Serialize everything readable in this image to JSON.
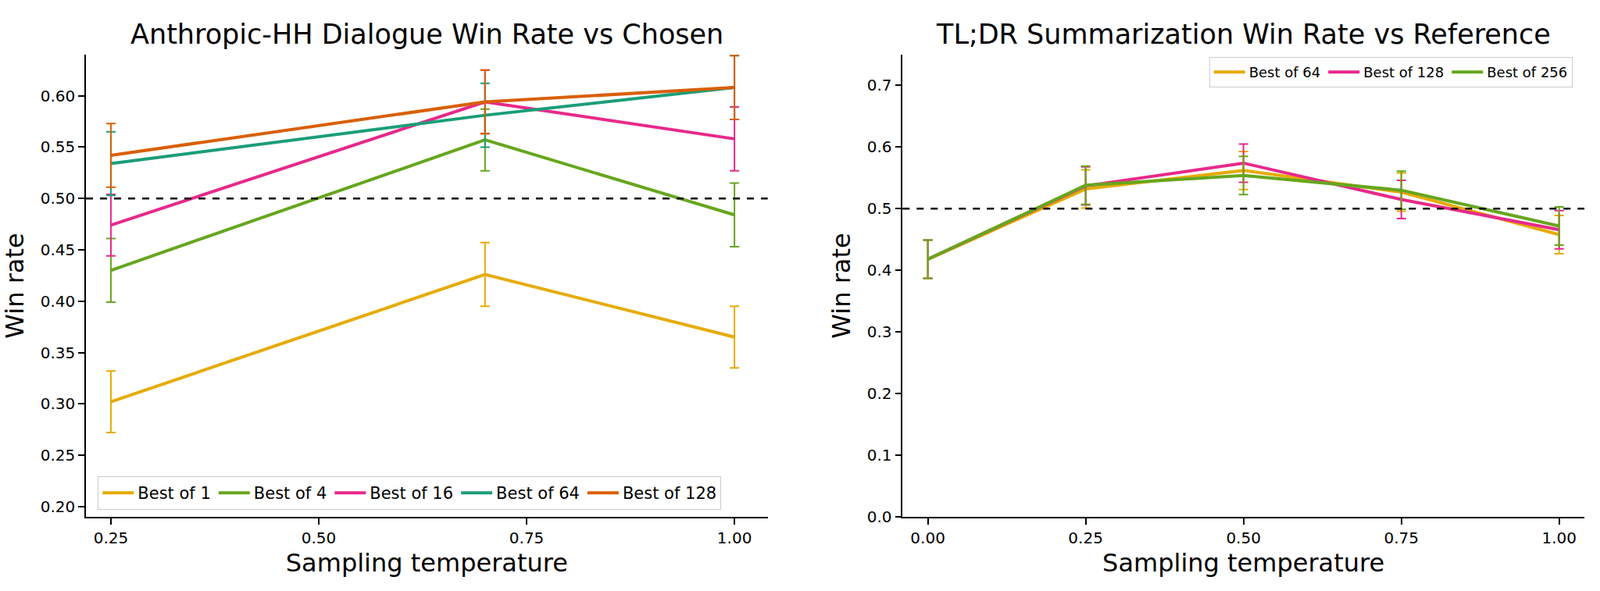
{
  "chart_data": [
    {
      "type": "line",
      "title": "Anthropic-HH Dialogue Win Rate vs Chosen",
      "x_label": "Sampling temperature",
      "y_label": "Win rate",
      "x": [
        0.25,
        0.7,
        1.0
      ],
      "xlim": [
        0.22,
        1.04
      ],
      "xticks": [
        0.25,
        {
          "value": 0.5,
          "label": "0.50"
        },
        0.75,
        {
          "value": 1.0,
          "label": "1.00"
        }
      ],
      "ylim": [
        0.19,
        0.64
      ],
      "yticks": [
        {
          "value": 0.2,
          "label": "0.20"
        },
        0.25,
        {
          "value": 0.3,
          "label": "0.30"
        },
        0.35,
        {
          "value": 0.4,
          "label": "0.40"
        },
        0.45,
        {
          "value": 0.5,
          "label": "0.50"
        },
        0.55,
        {
          "value": 0.6,
          "label": "0.60"
        }
      ],
      "reference_line": 0.5,
      "grid": false,
      "legend": "lower left",
      "series": [
        {
          "name": "Best of 1",
          "color": "#e6ab02",
          "values": [
            0.302,
            0.426,
            0.365
          ],
          "errors": [
            0.03,
            0.031,
            0.03
          ]
        },
        {
          "name": "Best of 4",
          "color": "#66a61e",
          "values": [
            0.43,
            0.557,
            0.484
          ],
          "errors": [
            0.031,
            0.03,
            0.031
          ]
        },
        {
          "name": "Best of 16",
          "color": "#e7298a",
          "values": [
            0.474,
            0.594,
            0.558
          ],
          "errors": [
            0.03,
            0.031,
            0.031
          ]
        },
        {
          "name": "Best of 64",
          "color": "#1b9e77",
          "values": [
            0.534,
            0.581,
            0.608
          ],
          "errors": [
            0.031,
            0.031,
            0.031
          ]
        },
        {
          "name": "Best of 128",
          "color": "#d95f02",
          "values": [
            0.542,
            0.594,
            0.608
          ],
          "errors": [
            0.031,
            0.031,
            0.031
          ]
        }
      ]
    },
    {
      "type": "line",
      "title": "TL;DR Summarization Win Rate vs Reference",
      "x_label": "Sampling temperature",
      "y_label": "Win rate",
      "x": [
        0.0,
        0.25,
        0.5,
        0.75,
        1.0
      ],
      "xlim": [
        -0.04,
        1.04
      ],
      "xticks": [
        {
          "value": 0.0,
          "label": "0.00"
        },
        0.25,
        {
          "value": 0.5,
          "label": "0.50"
        },
        0.75,
        {
          "value": 1.0,
          "label": "1.00"
        }
      ],
      "ylim": [
        0.0,
        0.75
      ],
      "yticks": [
        {
          "value": 0.0,
          "label": "0.0"
        },
        0.1,
        0.2,
        0.3,
        0.4,
        0.5,
        0.6,
        0.7
      ],
      "reference_line": 0.5,
      "grid": false,
      "legend": "upper right",
      "series": [
        {
          "name": "Best of 64",
          "color": "#e6ab02",
          "values": [
            0.418,
            0.532,
            0.562,
            0.527,
            0.458
          ],
          "errors": [
            0.031,
            0.031,
            0.031,
            0.031,
            0.031
          ]
        },
        {
          "name": "Best of 128",
          "color": "#e7298a",
          "values": [
            0.418,
            0.537,
            0.574,
            0.515,
            0.466
          ],
          "errors": [
            0.031,
            0.031,
            0.031,
            0.031,
            0.031
          ]
        },
        {
          "name": "Best of 256",
          "color": "#66a61e",
          "values": [
            0.418,
            0.538,
            0.554,
            0.53,
            0.472
          ],
          "errors": [
            0.031,
            0.031,
            0.031,
            0.031,
            0.031
          ]
        }
      ]
    }
  ]
}
